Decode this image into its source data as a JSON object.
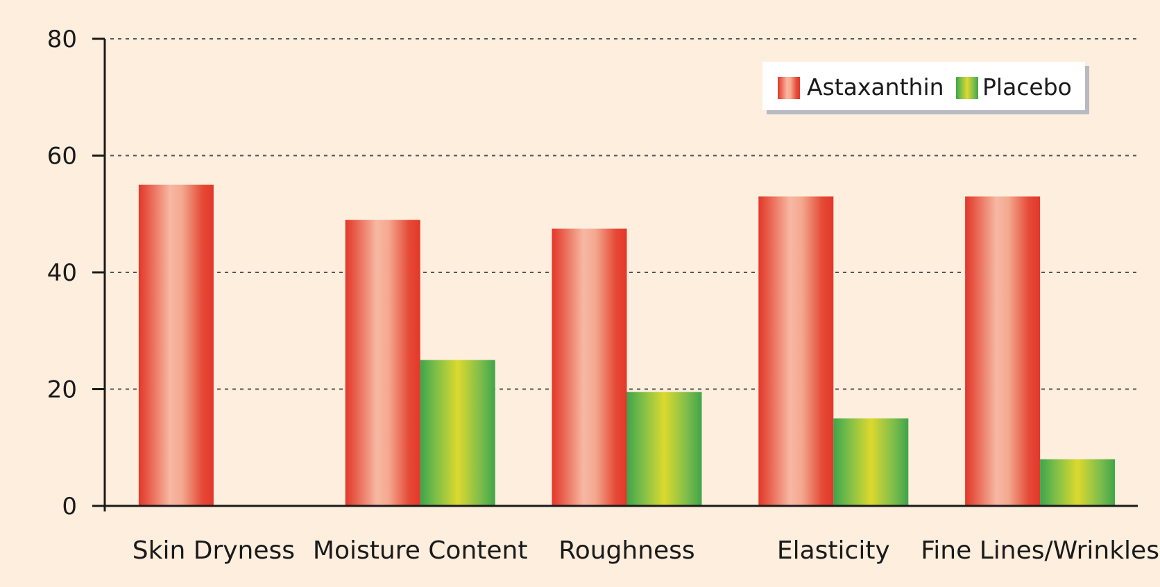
{
  "chart_data": {
    "type": "bar",
    "categories": [
      "Skin Dryness",
      "Moisture Content",
      "Roughness",
      "Elasticity",
      "Fine Lines/Wrinkles"
    ],
    "series": [
      {
        "name": "Astaxanthin",
        "values": [
          55,
          49,
          47.5,
          53,
          53
        ],
        "color": "#e43b2c"
      },
      {
        "name": "Placebo",
        "values": [
          null,
          25,
          19.5,
          15,
          8
        ],
        "color": "#3fa54a"
      }
    ],
    "ylim": [
      0,
      80
    ],
    "yticks": [
      0,
      20,
      40,
      60,
      80
    ],
    "grid": true,
    "legend_position": "top-right"
  }
}
